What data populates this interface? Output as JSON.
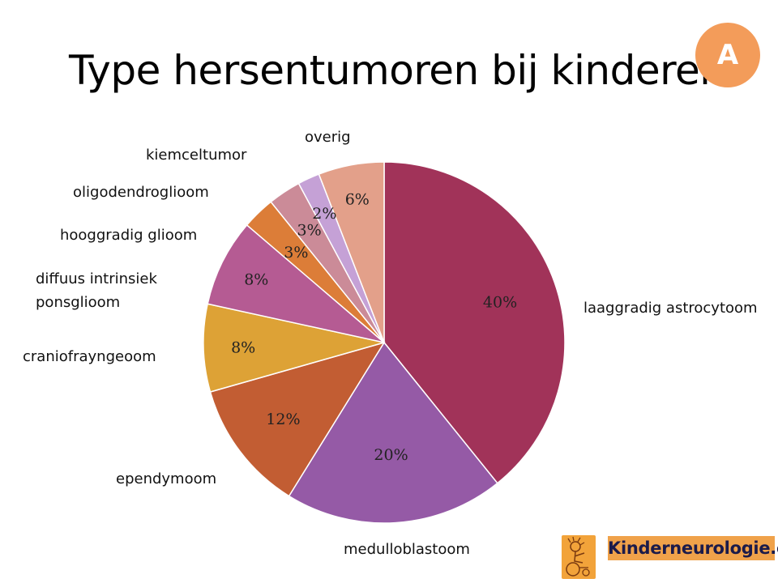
{
  "title": "Type hersentumoren bij kinderen",
  "badge": "A",
  "logo": {
    "text": "Kinderneurologie.eu"
  },
  "chart_data": {
    "type": "pie",
    "title": "Type hersentumoren bij kinderen",
    "slices": [
      {
        "name": "laaggradig astrocytoom",
        "value": 40,
        "label": "40%",
        "color": "#a13359"
      },
      {
        "name": "medulloblastoom",
        "value": 20,
        "label": "20%",
        "color": "#955aa6"
      },
      {
        "name": "ependymoom",
        "value": 12,
        "label": "12%",
        "color": "#c25d33"
      },
      {
        "name": "craniofrayngeoom",
        "value": 8,
        "label": "8%",
        "color": "#dda236"
      },
      {
        "name": [
          "diffuus intrinsiek",
          "ponsglioom"
        ],
        "value": 8,
        "label": "8%",
        "color": "#b55b93"
      },
      {
        "name": "hooggradig glioom",
        "value": 3,
        "label": "3%",
        "color": "#dc7d38"
      },
      {
        "name": "oligodendroglioom",
        "value": 3,
        "label": "3%",
        "color": "#cb8b98"
      },
      {
        "name": "kiemceltumor",
        "value": 2,
        "label": "2%",
        "color": "#c5a1d6"
      },
      {
        "name": "overig",
        "value": 6,
        "label": "6%",
        "color": "#e3a08a"
      }
    ]
  }
}
